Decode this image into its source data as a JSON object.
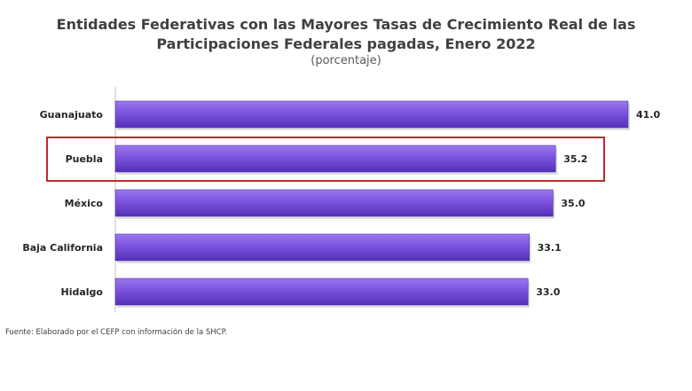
{
  "header": {
    "title_line1": "Entidades Federativas con las Mayores Tasas de Crecimiento Real de las",
    "title_line2": "Participaciones Federales pagadas, Enero 2022",
    "subtitle": "(porcentaje)"
  },
  "footer": {
    "source": "Fuente: Elaborado por el CEFP con información de la SHCP."
  },
  "chart_data": {
    "type": "bar",
    "orientation": "horizontal",
    "title": "Entidades Federativas con las Mayores Tasas de Crecimiento Real de las Participaciones Federales pagadas, Enero 2022",
    "subtitle": "(porcentaje)",
    "categories": [
      "Guanajuato",
      "Puebla",
      "México",
      "Baja California",
      "Hidalgo"
    ],
    "values": [
      41.0,
      35.2,
      35.0,
      33.1,
      33.0
    ],
    "value_labels": [
      "41.0",
      "35.2",
      "35.0",
      "33.1",
      "33.0"
    ],
    "highlighted_category": "Puebla",
    "xlim": [
      0,
      41.0
    ],
    "grid": false,
    "colors": {
      "bar": "#7b52de",
      "bar_light": "#9a78ee",
      "bar_dark": "#5430b8",
      "highlight_box": "#c0282d",
      "axis": "#bfbfbf",
      "text": "#262626"
    }
  }
}
